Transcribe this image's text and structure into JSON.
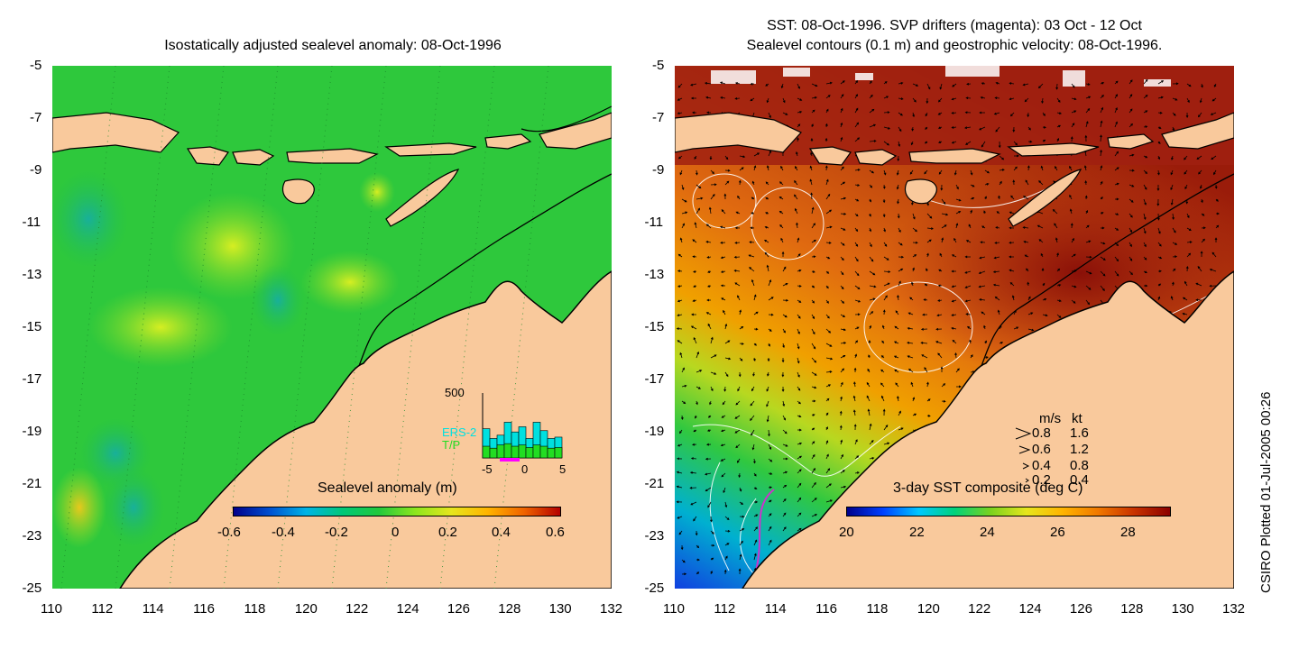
{
  "left_panel": {
    "title": "Isostatically adjusted sealevel anomaly: 08-Oct-1996",
    "colorbar": {
      "label": "Sealevel anomaly (m)",
      "ticks": [
        "-0.6",
        "-0.4",
        "-0.2",
        "0",
        "0.2",
        "0.4",
        "0.6"
      ],
      "colors": [
        "#00008b",
        "#0050d0",
        "#00b4e6",
        "#00c878",
        "#22c83c",
        "#8ce61e",
        "#e6e61e",
        "#ffb400",
        "#f06400",
        "#b40000"
      ]
    },
    "histogram": {
      "ymax_label": "500",
      "legend": [
        "ERS-2",
        "T/P"
      ],
      "xticks": [
        "-5",
        "0",
        "5"
      ],
      "bars_ers2": [
        0.45,
        0.3,
        0.35,
        0.55,
        0.4,
        0.48,
        0.3,
        0.55,
        0.42,
        0.3,
        0.32
      ],
      "bars_tp": [
        0.18,
        0.15,
        0.2,
        0.22,
        0.18,
        0.2,
        0.16,
        0.2,
        0.18,
        0.15,
        0.16
      ],
      "colors": {
        "ers2": "#00e0e0",
        "tp": "#22dd22",
        "drifter": "#ff00ff"
      }
    }
  },
  "right_panel": {
    "title_line1": "SST: 08-Oct-1996. SVP drifters (magenta): 03 Oct - 12 Oct",
    "title_line2": "Sealevel contours (0.1 m) and geostrophic velocity: 08-Oct-1996.",
    "colorbar": {
      "label": "3-day SST composite (deg C)",
      "ticks": [
        "20",
        "22",
        "24",
        "26",
        "28"
      ],
      "colors": [
        "#00008b",
        "#0040ff",
        "#00c8ff",
        "#00d27a",
        "#7ad21e",
        "#e6e61e",
        "#ffb400",
        "#f07800",
        "#c83200",
        "#8b0000"
      ]
    },
    "velocity_key": {
      "header_ms": "m/s",
      "header_kt": "kt",
      "rows": [
        [
          "0.8",
          "1.6"
        ],
        [
          "0.6",
          "1.2"
        ],
        [
          "0.4",
          "0.8"
        ],
        [
          "0.2",
          "0.4"
        ]
      ]
    }
  },
  "axes": {
    "lat_ticks": [
      "-5",
      "-7",
      "-9",
      "-11",
      "-13",
      "-15",
      "-17",
      "-19",
      "-21",
      "-23",
      "-25"
    ],
    "lon_ticks": [
      "110",
      "112",
      "114",
      "116",
      "118",
      "120",
      "122",
      "124",
      "126",
      "128",
      "130",
      "132"
    ]
  },
  "credit": "CSIRO Plotted 01-Jul-2005 00:26",
  "colors": {
    "land": "#f9c99c",
    "coast": "#000000",
    "ocean_left": "#2ec83c",
    "ocean_right_warm": "#b43c14"
  }
}
